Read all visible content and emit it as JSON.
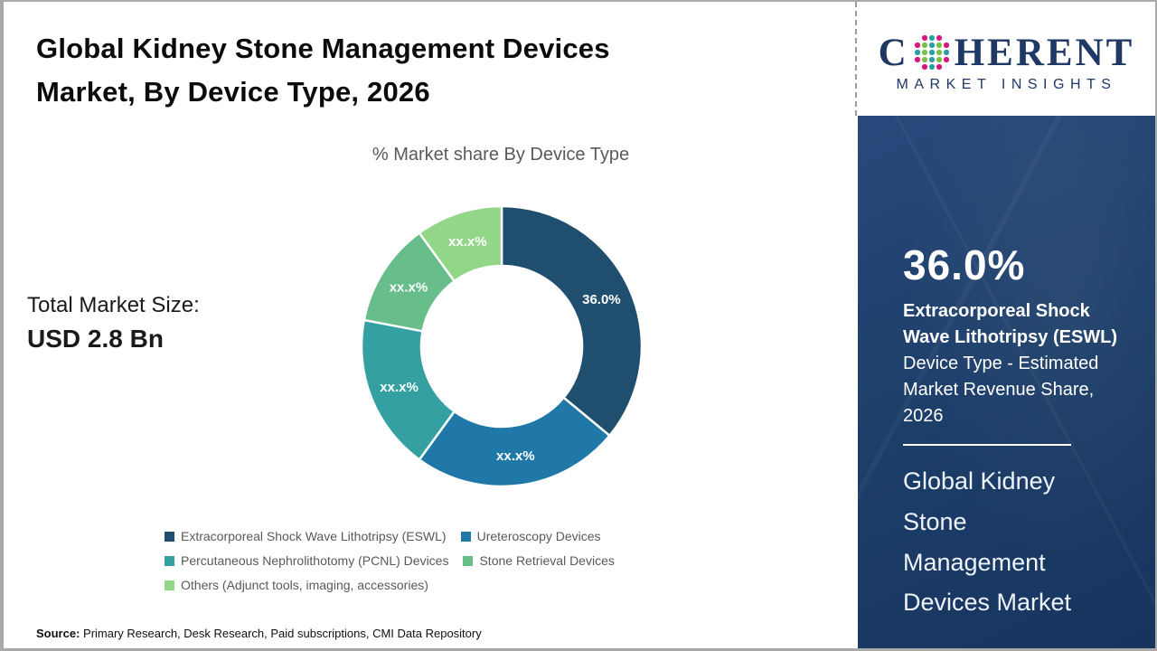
{
  "header": {
    "title": "Global Kidney Stone Management Devices Market, By Device Type, 2026"
  },
  "chart_data": {
    "type": "pie",
    "subtype": "donut",
    "title": "% Market share By Device Type",
    "categories": [
      "Extracorporeal Shock Wave Lithotripsy (ESWL)",
      "Ureteroscopy Devices",
      "Percutaneous Nephrolithotomy (PCNL) Devices",
      "Stone Retrieval Devices",
      "Others (Adjunct tools, imaging, accessories)"
    ],
    "values": [
      36.0,
      24.0,
      18.0,
      12.0,
      10.0
    ],
    "slice_labels": [
      "36.0%",
      "xx.x%",
      "xx.x%",
      "xx.x%",
      "xx.x%"
    ],
    "colors": [
      "#1F4E6E",
      "#1F78A8",
      "#35A0A2",
      "#67BE8B",
      "#92D687"
    ],
    "legend_position": "bottom",
    "start_angle_deg": 0,
    "direction": "clockwise"
  },
  "total_market": {
    "label": "Total Market Size:",
    "value": "USD 2.8 Bn"
  },
  "source": {
    "label": "Source:",
    "text": " Primary Research, Desk Research, Paid subscriptions, CMI Data Repository"
  },
  "sidebar": {
    "background_color": "#1D3F6A",
    "highlight_value": "36.0%",
    "highlight_bold": "Extracorporeal Shock Wave Lithotripsy (ESWL)",
    "highlight_rest": " Device Type - Estimated Market Revenue Share, 2026",
    "footer_title": "Global Kidney Stone Management Devices Market",
    "logo": {
      "brand_start": "C",
      "brand_end": "HERENT",
      "tagline": "MARKET INSIGHTS",
      "navy": "#1F3864",
      "dot_colors": {
        "magenta": "#D6197F",
        "teal": "#2B9FA5",
        "green": "#7CC143"
      }
    }
  }
}
